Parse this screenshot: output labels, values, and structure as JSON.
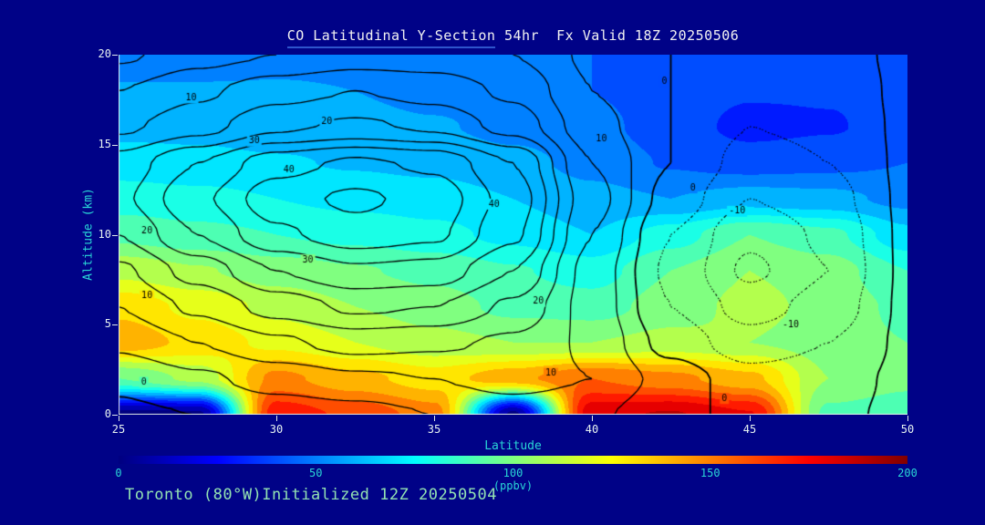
{
  "title": {
    "main": "CO Latitudinal Y-Section",
    "rest": " 54hr  Fx Valid 18Z 20250506"
  },
  "footer": {
    "text": "Toronto (80°W)Initialized 12Z 20250504"
  },
  "chart_data": {
    "type": "heatmap",
    "subtype": "filled-contour-latitude-height-cross-section",
    "title": "CO Latitudinal Y-Section 54hr  Fx Valid 18Z 20250506",
    "xlabel": "Latitude",
    "ylabel": "Altitude (km)",
    "x_range": [
      25,
      50
    ],
    "y_range": [
      0,
      20
    ],
    "x_ticks": [
      25,
      30,
      35,
      40,
      45,
      50
    ],
    "y_ticks": [
      0,
      5,
      10,
      15,
      20
    ],
    "colorbar": {
      "label": "(ppbv)",
      "ticks": [
        0,
        50,
        100,
        150,
        200
      ],
      "min": 0,
      "max": 200,
      "stops": [
        [
          0,
          "#000080"
        ],
        [
          25,
          "#0000ff"
        ],
        [
          75,
          "#00ffff"
        ],
        [
          125,
          "#ffff00"
        ],
        [
          175,
          "#ff0000"
        ],
        [
          200,
          "#800000"
        ]
      ]
    },
    "fill_grid": {
      "units": "ppbv",
      "lats": [
        25,
        27.5,
        30,
        32.5,
        35,
        37.5,
        40,
        42.5,
        45,
        47.5,
        50
      ],
      "alts_top_to_bottom": [
        20,
        18,
        16,
        14,
        12,
        10,
        8,
        6,
        4,
        2,
        0
      ],
      "values_ppbv": [
        [
          50,
          50,
          52,
          52,
          50,
          48,
          45,
          42,
          40,
          40,
          38
        ],
        [
          56,
          56,
          56,
          55,
          52,
          50,
          45,
          40,
          36,
          36,
          38
        ],
        [
          62,
          62,
          60,
          58,
          56,
          52,
          48,
          40,
          32,
          34,
          40
        ],
        [
          70,
          68,
          66,
          64,
          62,
          58,
          52,
          44,
          40,
          42,
          45
        ],
        [
          80,
          78,
          75,
          72,
          70,
          65,
          58,
          55,
          60,
          58,
          52
        ],
        [
          92,
          88,
          85,
          82,
          78,
          72,
          65,
          80,
          95,
          88,
          68
        ],
        [
          112,
          106,
          100,
          96,
          92,
          86,
          80,
          95,
          105,
          100,
          85
        ],
        [
          132,
          122,
          112,
          105,
          100,
          92,
          90,
          100,
          108,
          102,
          92
        ],
        [
          142,
          132,
          122,
          115,
          108,
          105,
          105,
          108,
          105,
          100,
          95
        ],
        [
          95,
          108,
          148,
          138,
          130,
          142,
          155,
          148,
          138,
          105,
          98
        ],
        [
          2,
          2,
          172,
          162,
          150,
          2,
          182,
          186,
          176,
          92,
          88
        ]
      ]
    },
    "overlay_contours": {
      "levels_solid": [
        0,
        5,
        10,
        15,
        20,
        25,
        30,
        35,
        40,
        45
      ],
      "levels_dotted": [
        -15,
        -10,
        -5
      ],
      "grid": [
        [
          4,
          8,
          10,
          12,
          12,
          10,
          4,
          0,
          -2,
          -2,
          1
        ],
        [
          10,
          14,
          18,
          20,
          18,
          14,
          5,
          0,
          -4,
          -3,
          1
        ],
        [
          14,
          18,
          24,
          26,
          24,
          18,
          7,
          0,
          -5,
          -4,
          1
        ],
        [
          22,
          30,
          38,
          41,
          39,
          30,
          10,
          0,
          -7,
          -5,
          1
        ],
        [
          24,
          34,
          43,
          46,
          43,
          33,
          12,
          -2,
          -10,
          -7,
          1
        ],
        [
          20,
          30,
          39,
          43,
          41,
          31,
          10,
          -5,
          -14,
          -9,
          1
        ],
        [
          14,
          22,
          30,
          34,
          33,
          25,
          8,
          -6,
          -16,
          -10,
          1
        ],
        [
          10,
          16,
          22,
          26,
          25,
          19,
          8,
          -5,
          -12,
          -8,
          1
        ],
        [
          6,
          10,
          14,
          17,
          16,
          14,
          9,
          -2,
          -8,
          -5,
          1
        ],
        [
          1,
          4,
          7,
          9,
          10,
          12,
          10,
          3,
          -3,
          -2,
          1
        ],
        [
          -1,
          0,
          2,
          3,
          5,
          7,
          6,
          1,
          -1,
          -1,
          1
        ]
      ],
      "labels": [
        {
          "lat": 27.3,
          "alt": 17.6,
          "text": "10"
        },
        {
          "lat": 31.6,
          "alt": 16.3,
          "text": "20"
        },
        {
          "lat": 29.3,
          "alt": 15.2,
          "text": "30"
        },
        {
          "lat": 30.4,
          "alt": 13.6,
          "text": "40"
        },
        {
          "lat": 40.3,
          "alt": 15.3,
          "text": "10"
        },
        {
          "lat": 25.9,
          "alt": 10.2,
          "text": "20"
        },
        {
          "lat": 31.0,
          "alt": 8.6,
          "text": "30"
        },
        {
          "lat": 36.9,
          "alt": 11.7,
          "text": "40"
        },
        {
          "lat": 25.9,
          "alt": 6.6,
          "text": "10"
        },
        {
          "lat": 38.3,
          "alt": 6.3,
          "text": "20"
        },
        {
          "lat": 25.8,
          "alt": 1.8,
          "text": "0"
        },
        {
          "lat": 38.7,
          "alt": 2.3,
          "text": "10"
        },
        {
          "lat": 44.2,
          "alt": 0.9,
          "text": "0"
        },
        {
          "lat": 43.2,
          "alt": 12.6,
          "text": "0"
        },
        {
          "lat": 44.6,
          "alt": 11.3,
          "text": "-10"
        },
        {
          "lat": 46.3,
          "alt": 5.0,
          "text": "-10"
        },
        {
          "lat": 42.3,
          "alt": 18.5,
          "text": "0"
        }
      ]
    },
    "colors": {
      "background": "#000287",
      "contour_line": "#000000",
      "tick_text": "#e7f3f1",
      "axis_name_text": "#29d6d6",
      "title_text": "#f2f2f2",
      "title_underline": "#2e55cc",
      "footer_text": "#93e2b2"
    }
  }
}
